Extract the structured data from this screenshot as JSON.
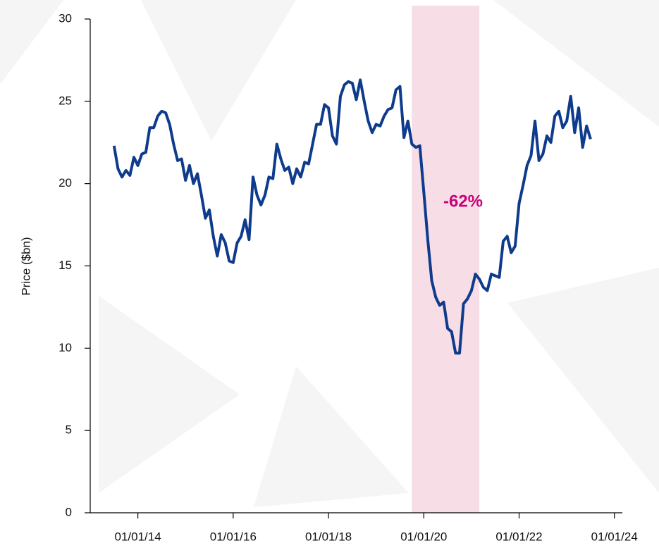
{
  "chart_data": {
    "type": "line",
    "ylabel": "Price ($bn)",
    "annotation": "-62%",
    "annotation_color": "#c8007a",
    "shade": [
      "01/10/19",
      "01/03/21"
    ],
    "shade_color": "#f6dde6",
    "xlim": [
      "01/01/13",
      "01/03/24"
    ],
    "xticks": [
      "01/01/14",
      "01/01/16",
      "01/01/18",
      "01/01/20",
      "01/01/22",
      "01/01/24"
    ],
    "ylim": [
      0,
      30
    ],
    "yticks": [
      0,
      5,
      10,
      15,
      20,
      25,
      30
    ],
    "x": [
      "01/07/13",
      "01/08/13",
      "01/09/13",
      "01/10/13",
      "01/11/13",
      "01/12/13",
      "01/01/14",
      "01/02/14",
      "01/03/14",
      "01/04/14",
      "01/05/14",
      "01/06/14",
      "01/07/14",
      "01/08/14",
      "01/09/14",
      "01/10/14",
      "01/11/14",
      "01/12/14",
      "01/01/15",
      "01/02/15",
      "01/03/15",
      "01/04/15",
      "01/05/15",
      "01/06/15",
      "01/07/15",
      "01/08/15",
      "01/09/15",
      "01/10/15",
      "01/11/15",
      "01/12/15",
      "01/01/16",
      "01/02/16",
      "01/03/16",
      "01/04/16",
      "01/05/16",
      "01/06/16",
      "01/07/16",
      "01/08/16",
      "01/09/16",
      "01/10/16",
      "01/11/16",
      "01/12/16",
      "01/01/17",
      "01/02/17",
      "01/03/17",
      "01/04/17",
      "01/05/17",
      "01/06/17",
      "01/07/17",
      "01/08/17",
      "01/09/17",
      "01/10/17",
      "01/11/17",
      "01/12/17",
      "01/01/18",
      "01/02/18",
      "01/03/18",
      "01/04/18",
      "01/05/18",
      "01/06/18",
      "01/07/18",
      "01/08/18",
      "01/09/18",
      "01/10/18",
      "01/11/18",
      "01/12/18",
      "01/01/19",
      "01/02/19",
      "01/03/19",
      "01/04/19",
      "01/05/19",
      "01/06/19",
      "01/07/19",
      "01/08/19",
      "01/09/19",
      "01/10/19",
      "01/11/19",
      "01/12/19",
      "01/01/20",
      "01/02/20",
      "01/03/20",
      "01/04/20",
      "01/05/20",
      "01/06/20",
      "01/07/20",
      "01/08/20",
      "01/09/20",
      "01/10/20",
      "01/11/20",
      "01/12/20",
      "01/01/21",
      "01/02/21",
      "01/03/21",
      "01/04/21",
      "01/05/21",
      "01/06/21",
      "01/07/21",
      "01/08/21",
      "01/09/21",
      "01/10/21",
      "01/11/21",
      "01/12/21",
      "01/01/22",
      "01/02/22",
      "01/03/22",
      "01/04/22",
      "01/05/22",
      "01/06/22",
      "01/07/22",
      "01/08/22",
      "01/09/22",
      "01/10/22",
      "01/11/22",
      "01/12/22",
      "01/01/23",
      "01/02/23",
      "01/03/23",
      "01/04/23",
      "01/05/23",
      "01/06/23",
      "01/07/23"
    ],
    "series": [
      {
        "color": "#0f3b8c",
        "values": [
          22.3,
          20.9,
          20.4,
          20.8,
          20.5,
          21.6,
          21.1,
          21.8,
          21.9,
          23.4,
          23.4,
          24.1,
          24.4,
          24.3,
          23.6,
          22.4,
          21.4,
          21.5,
          20.2,
          21.1,
          20.0,
          20.6,
          19.3,
          17.9,
          18.4,
          16.8,
          15.6,
          16.9,
          16.4,
          15.3,
          15.2,
          16.4,
          16.8,
          17.8,
          16.6,
          20.4,
          19.3,
          18.7,
          19.3,
          20.4,
          20.3,
          22.4,
          21.5,
          20.8,
          21.0,
          20.0,
          20.9,
          20.4,
          21.3,
          21.2,
          22.4,
          23.6,
          23.6,
          24.8,
          24.6,
          22.9,
          22.4,
          25.3,
          26.0,
          26.2,
          26.1,
          25.1,
          26.3,
          25.0,
          23.8,
          23.1,
          23.6,
          23.5,
          24.1,
          24.5,
          24.6,
          25.7,
          25.9,
          22.8,
          23.8,
          22.4,
          22.2,
          22.3,
          19.5,
          16.6,
          14.1,
          13.1,
          12.6,
          12.8,
          11.2,
          11.0,
          9.7,
          9.7,
          12.7,
          13.0,
          13.5,
          14.5,
          14.2,
          13.7,
          13.5,
          14.5,
          14.4,
          14.3,
          16.5,
          16.8,
          15.8,
          16.2,
          18.8,
          19.9,
          21.1,
          21.7,
          23.8,
          21.4,
          21.8,
          22.9,
          22.5,
          24.1,
          24.4,
          23.4,
          23.8,
          25.3,
          23.1,
          24.6,
          22.2,
          23.5,
          22.7
        ]
      }
    ]
  }
}
